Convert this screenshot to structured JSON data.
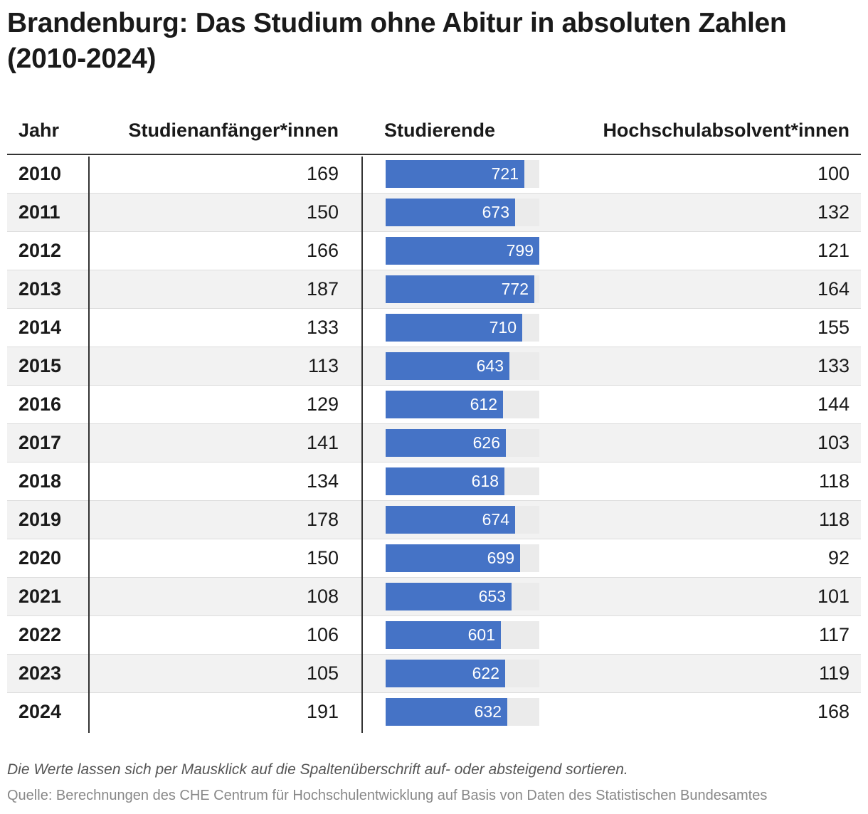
{
  "title": "Brandenburg: Das Studium ohne Abitur in absoluten Zahlen (2010-2024)",
  "note": "Die Werte lassen sich per Mausklick auf die Spaltenüberschrift auf- oder absteigend sortieren.",
  "source": "Quelle: Berechnungen des CHE Centrum für Hochschulentwicklung auf Basis von Daten des Statistischen Bundesamtes",
  "colors": {
    "bar": "#4573c6",
    "bar_track": "#ebebeb",
    "row_alt": "#f2f2f2",
    "text": "#1a1a1a"
  },
  "chart_data": {
    "type": "table",
    "title": "Brandenburg: Das Studium ohne Abitur in absoluten Zahlen (2010-2024)",
    "columns": [
      "Jahr",
      "Studienanfänger*innen",
      "Studierende",
      "Hochschulabsolvent*innen"
    ],
    "bar_column": "Studierende",
    "bar_max": 799,
    "rows": [
      {
        "year": "2010",
        "start": "169",
        "students": 721,
        "grads": "100"
      },
      {
        "year": "2011",
        "start": "150",
        "students": 673,
        "grads": "132"
      },
      {
        "year": "2012",
        "start": "166",
        "students": 799,
        "grads": "121"
      },
      {
        "year": "2013",
        "start": "187",
        "students": 772,
        "grads": "164"
      },
      {
        "year": "2014",
        "start": "133",
        "students": 710,
        "grads": "155"
      },
      {
        "year": "2015",
        "start": "113",
        "students": 643,
        "grads": "133"
      },
      {
        "year": "2016",
        "start": "129",
        "students": 612,
        "grads": "144"
      },
      {
        "year": "2017",
        "start": "141",
        "students": 626,
        "grads": "103"
      },
      {
        "year": "2018",
        "start": "134",
        "students": 618,
        "grads": "118"
      },
      {
        "year": "2019",
        "start": "178",
        "students": 674,
        "grads": "118"
      },
      {
        "year": "2020",
        "start": "150",
        "students": 699,
        "grads": "92"
      },
      {
        "year": "2021",
        "start": "108",
        "students": 653,
        "grads": "101"
      },
      {
        "year": "2022",
        "start": "106",
        "students": 601,
        "grads": "117"
      },
      {
        "year": "2023",
        "start": "105",
        "students": 622,
        "grads": "119"
      },
      {
        "year": "2024",
        "start": "191",
        "students": 632,
        "grads": "168"
      }
    ]
  }
}
